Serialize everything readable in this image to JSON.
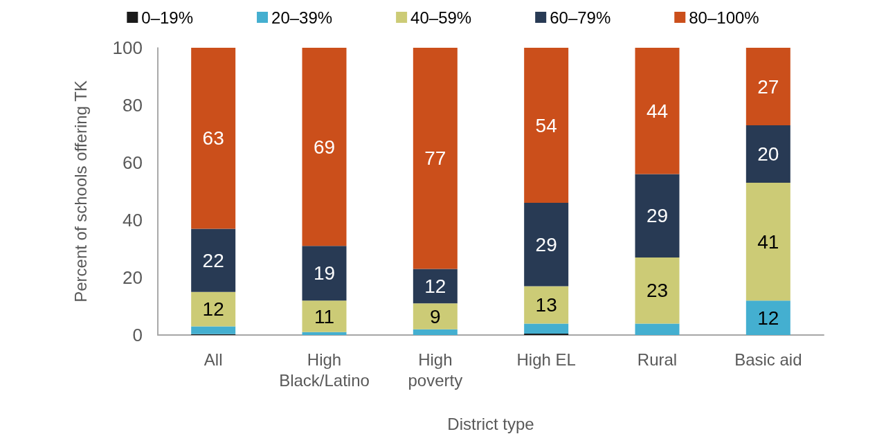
{
  "chart_data": {
    "type": "bar",
    "stacked": true,
    "xlabel": "District type",
    "ylabel": "Percent of schools offering TK",
    "categories": [
      "All",
      "High Black/Latino",
      "High poverty",
      "High EL",
      "Rural",
      "Basic aid"
    ],
    "series": [
      {
        "name": "0–19%",
        "color": "#1a1a1a",
        "values": [
          0.3,
          0,
          0,
          0.5,
          0,
          0
        ],
        "value_labels": [
          null,
          null,
          null,
          null,
          null,
          null
        ]
      },
      {
        "name": "20–39%",
        "color": "#44afd0",
        "values": [
          2.7,
          1,
          2,
          3.5,
          4,
          12
        ],
        "value_labels": [
          null,
          null,
          null,
          null,
          null,
          "12"
        ]
      },
      {
        "name": "40–59%",
        "color": "#cccb76",
        "values": [
          12,
          11,
          9,
          13,
          23,
          41
        ],
        "value_labels": [
          "12",
          "11",
          "9",
          "13",
          "23",
          "41"
        ]
      },
      {
        "name": "60–79%",
        "color": "#283a54",
        "values": [
          22,
          19,
          12,
          29,
          29,
          20
        ],
        "value_labels": [
          "22",
          "19",
          "12",
          "29",
          "29",
          "20"
        ]
      },
      {
        "name": "80–100%",
        "color": "#cb4f1b",
        "values": [
          63,
          69,
          77,
          54,
          44,
          27
        ],
        "value_labels": [
          "63",
          "69",
          "77",
          "54",
          "44",
          "27"
        ]
      }
    ],
    "ylim": [
      0,
      100
    ],
    "yticks": [
      0,
      20,
      40,
      60,
      80,
      100
    ],
    "grid": false,
    "legend": "top"
  }
}
